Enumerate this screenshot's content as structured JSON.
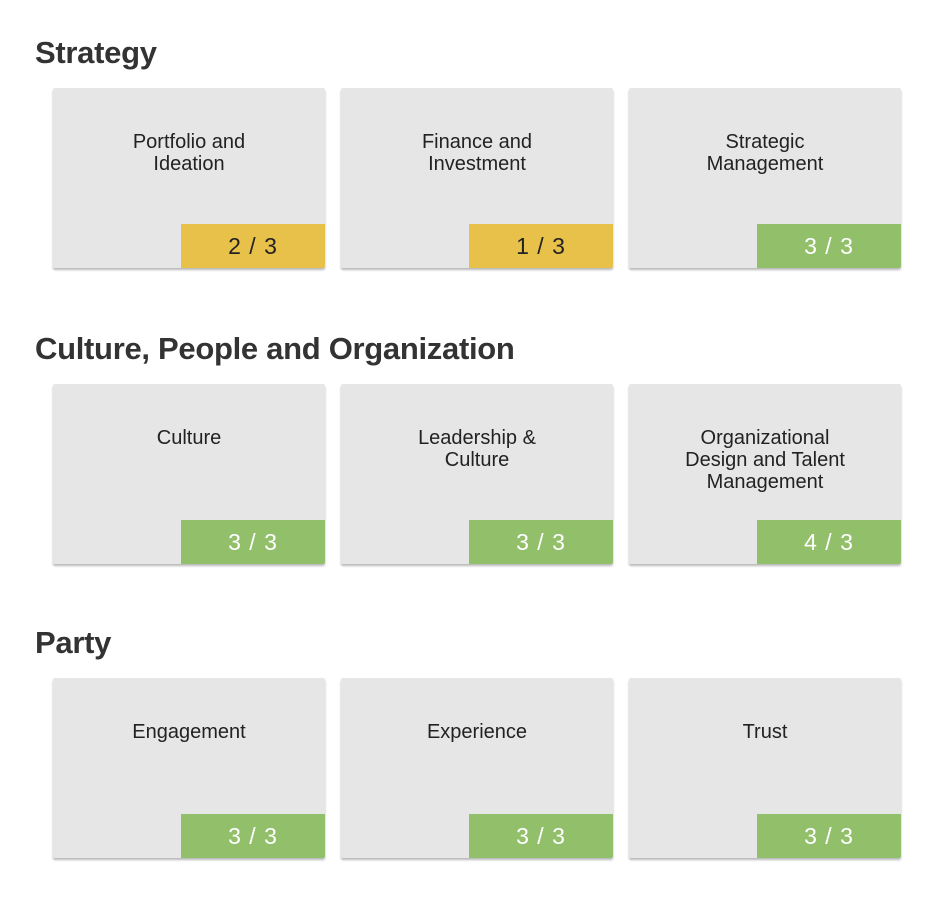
{
  "colors": {
    "partial": "#e8c14a",
    "complete": "#92c06a",
    "card_bg": "#e6e6e6"
  },
  "sections": [
    {
      "title": "Strategy",
      "cards": [
        {
          "title": "Portfolio and Ideation",
          "score": "2 / 3",
          "status": "partial"
        },
        {
          "title": "Finance and Investment",
          "score": "1 / 3",
          "status": "partial"
        },
        {
          "title": "Strategic Management",
          "score": "3 / 3",
          "status": "complete"
        }
      ]
    },
    {
      "title": "Culture, People and Organization",
      "cards": [
        {
          "title": "Culture",
          "score": "3 / 3",
          "status": "complete"
        },
        {
          "title": "Leadership & Culture",
          "score": "3 / 3",
          "status": "complete"
        },
        {
          "title": "Organizational Design and Talent Management",
          "score": "4 / 3",
          "status": "complete"
        }
      ]
    },
    {
      "title": "Party",
      "cards": [
        {
          "title": "Engagement",
          "score": "3 / 3",
          "status": "complete"
        },
        {
          "title": "Experience",
          "score": "3 / 3",
          "status": "complete"
        },
        {
          "title": "Trust",
          "score": "3 / 3",
          "status": "complete"
        }
      ]
    }
  ]
}
